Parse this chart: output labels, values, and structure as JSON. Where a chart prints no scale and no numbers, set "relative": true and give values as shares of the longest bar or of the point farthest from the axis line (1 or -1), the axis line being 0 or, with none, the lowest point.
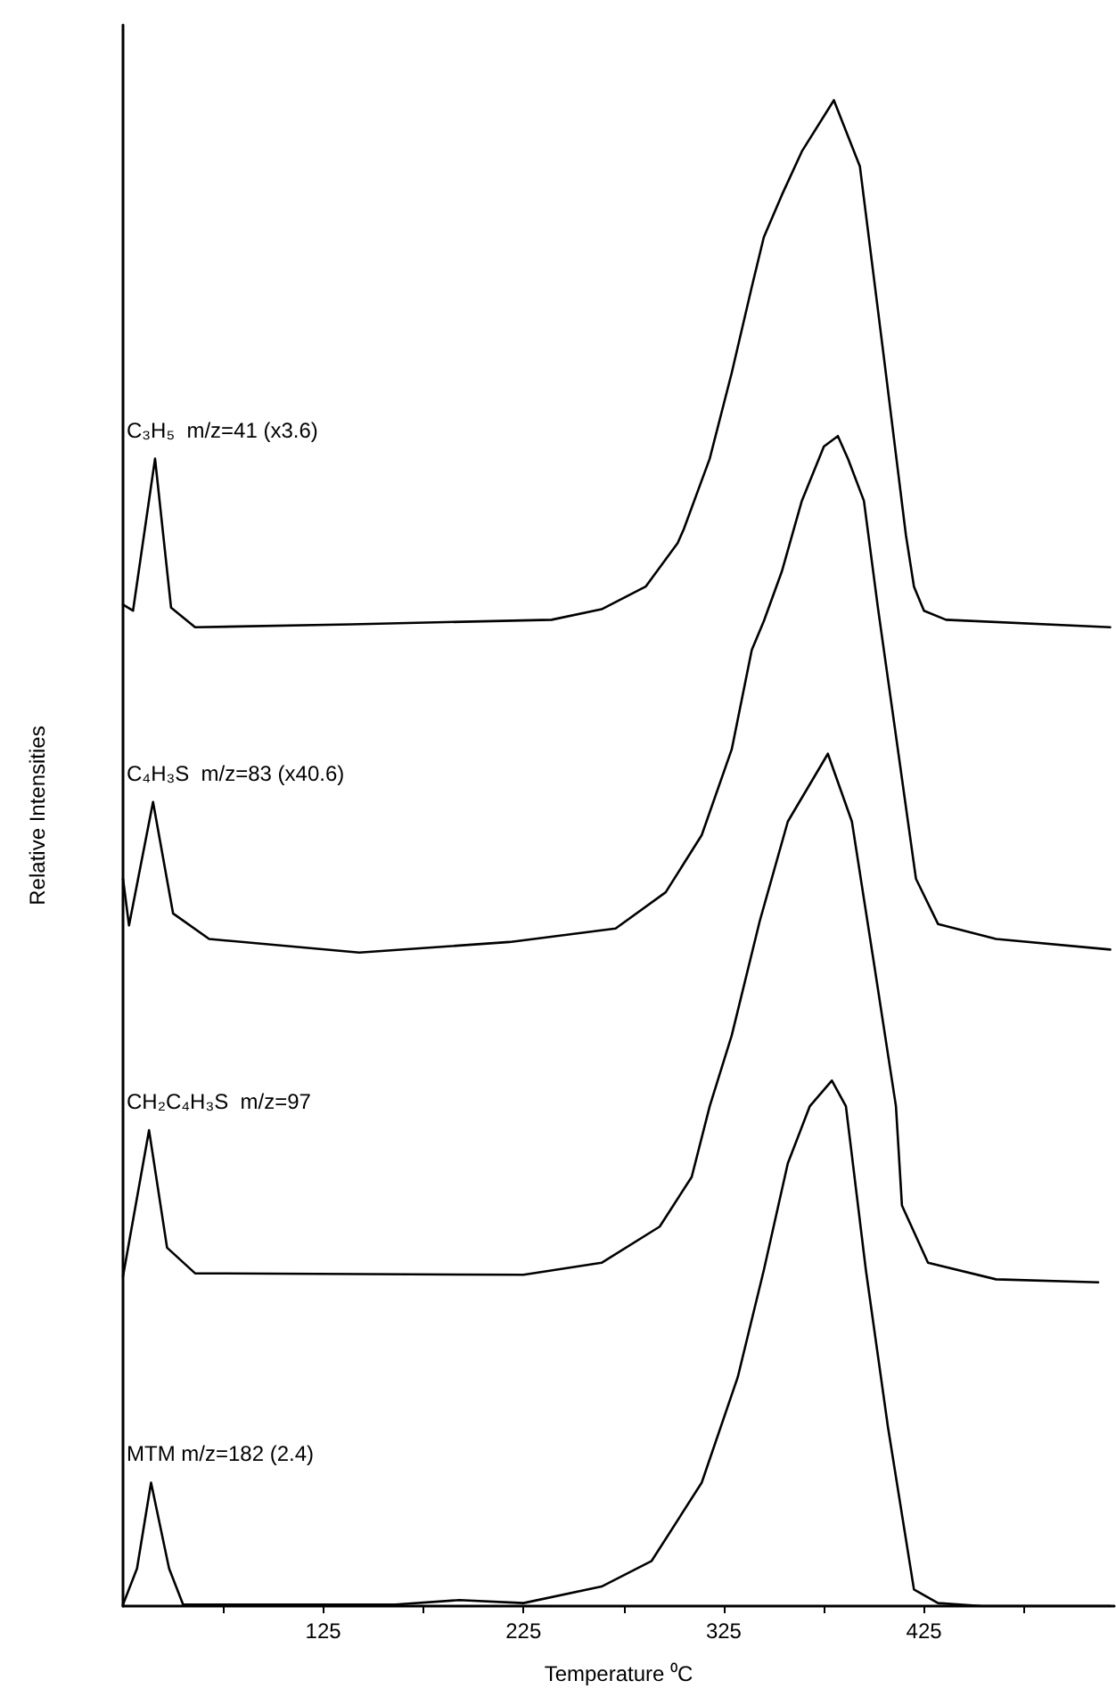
{
  "chart_data": {
    "type": "line",
    "relative": true,
    "xlabel": "Temperature ⁰C",
    "ylabel": "Relative Intensities",
    "xlim": [
      25,
      520
    ],
    "xticks": [
      {
        "value": 75,
        "label": null
      },
      125,
      {
        "value": 175,
        "label": null
      },
      225,
      {
        "value": 275,
        "label": null
      },
      325,
      {
        "value": 375,
        "label": null
      },
      425,
      {
        "value": 475,
        "label": null
      }
    ],
    "grid": false,
    "legend": false,
    "marker": "none",
    "line_style": "solid",
    "series": [
      {
        "name": "C₃H₅  m/z=41 (x3.6)",
        "color": "#000000",
        "x": [
          25,
          30,
          41,
          49,
          61,
          139,
          239,
          264,
          286,
          302,
          305,
          318,
          329,
          339,
          345,
          354,
          364,
          380,
          393,
          405,
          416,
          420,
          425,
          436,
          518
        ],
        "values": [
          0.665,
          0.661,
          0.762,
          0.663,
          0.65,
          0.652,
          0.655,
          0.662,
          0.677,
          0.706,
          0.715,
          0.762,
          0.819,
          0.876,
          0.909,
          0.937,
          0.966,
          1,
          0.956,
          0.829,
          0.711,
          0.677,
          0.661,
          0.655,
          0.65
        ]
      },
      {
        "name": "C₄H₃S  m/z=83 (x40.6)",
        "color": "#000000",
        "x": [
          25,
          28,
          40,
          50,
          68,
          143,
          218,
          271,
          296,
          314,
          329,
          339,
          345,
          354,
          364,
          375,
          382,
          387,
          395,
          402,
          411,
          421,
          432,
          461,
          518
        ],
        "values": [
          0.483,
          0.452,
          0.534,
          0.46,
          0.443,
          0.434,
          0.441,
          0.45,
          0.474,
          0.512,
          0.569,
          0.635,
          0.654,
          0.687,
          0.734,
          0.77,
          0.777,
          0.762,
          0.734,
          0.663,
          0.578,
          0.483,
          0.453,
          0.443,
          0.436
        ]
      },
      {
        "name": "CH₂C₄H₃S  m/z=97",
        "color": "#000000",
        "x": [
          25,
          38,
          47,
          61,
          225,
          264,
          293,
          309,
          318,
          329,
          343,
          357,
          377,
          389,
          400,
          411,
          414,
          427,
          461,
          512
        ],
        "values": [
          0.219,
          0.316,
          0.238,
          0.221,
          0.22,
          0.228,
          0.252,
          0.285,
          0.332,
          0.379,
          0.455,
          0.521,
          0.566,
          0.521,
          0.427,
          0.332,
          0.266,
          0.228,
          0.217,
          0.215
        ]
      },
      {
        "name": "MTM m/z=182 (2.4)",
        "color": "#000000",
        "x": [
          25,
          32,
          39,
          48,
          55,
          161,
          193,
          225,
          264,
          289,
          314,
          332,
          345,
          357,
          368,
          379,
          386,
          396,
          407,
          420,
          432,
          454,
          518
        ],
        "values": [
          0.001,
          0.025,
          0.082,
          0.025,
          0.001,
          0.001,
          0.004,
          0.002,
          0.013,
          0.03,
          0.082,
          0.152,
          0.223,
          0.294,
          0.332,
          0.349,
          0.332,
          0.223,
          0.119,
          0.011,
          0.002,
          0,
          0
        ]
      }
    ]
  }
}
